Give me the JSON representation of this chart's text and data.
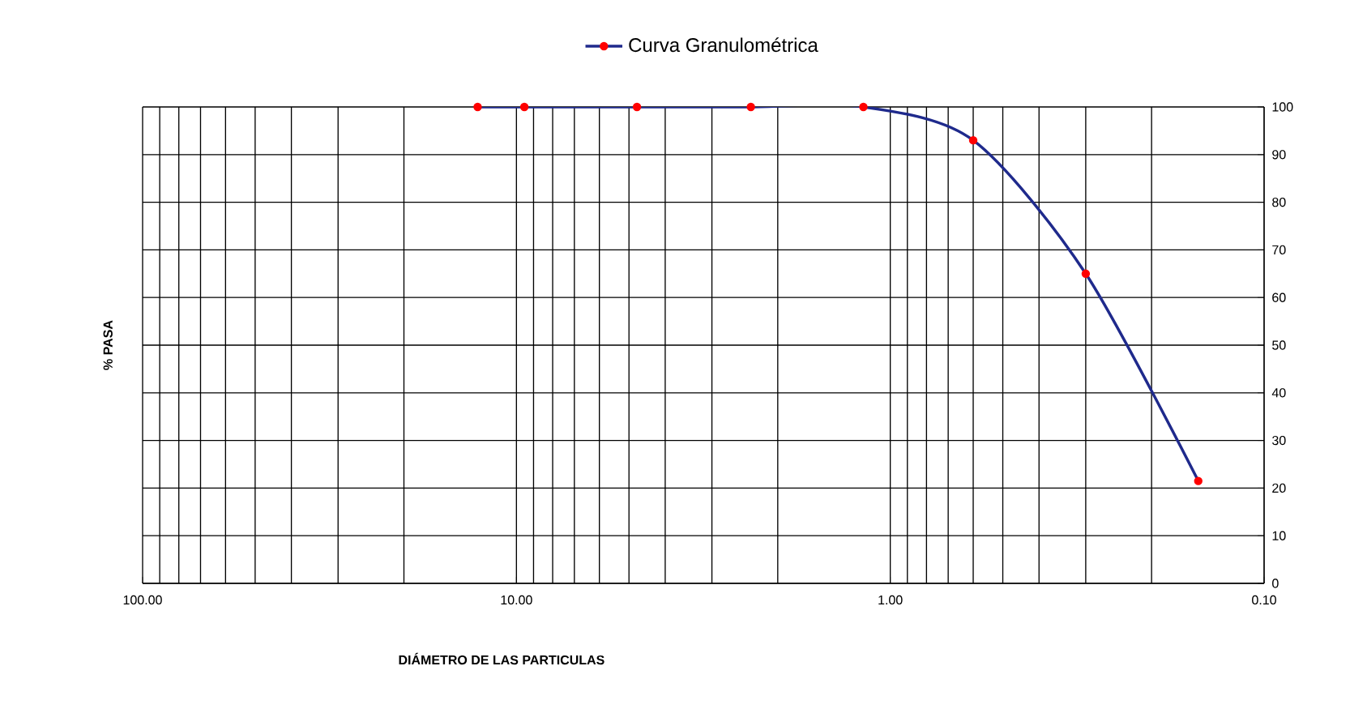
{
  "chart_data": {
    "type": "line",
    "xlabel": "DIÁMETRO DE LAS PARTICULAS",
    "ylabel": "% PASA",
    "log": "x",
    "xlim": [
      100,
      0.1
    ],
    "xticks": [
      {
        "value": 100,
        "label": "100.00"
      },
      {
        "value": 10,
        "label": "10.00"
      },
      {
        "value": 1,
        "label": "1.00"
      },
      {
        "value": 0.1,
        "label": "0.10"
      }
    ],
    "ylim": [
      0,
      100
    ],
    "yticks": [
      0,
      10,
      20,
      30,
      40,
      50,
      60,
      70,
      80,
      90,
      100
    ],
    "x": [
      12.7,
      9.525,
      4.76,
      2.36,
      1.18,
      0.6,
      0.3,
      0.15
    ],
    "series": [
      {
        "name": "Curva Granulométrica",
        "color": "#1f2a8c",
        "values": [
          100,
          100,
          100,
          100,
          100,
          93,
          65,
          21.5
        ]
      }
    ],
    "grid": true,
    "legend": "top",
    "marker": "circle",
    "line_style": "solid"
  }
}
